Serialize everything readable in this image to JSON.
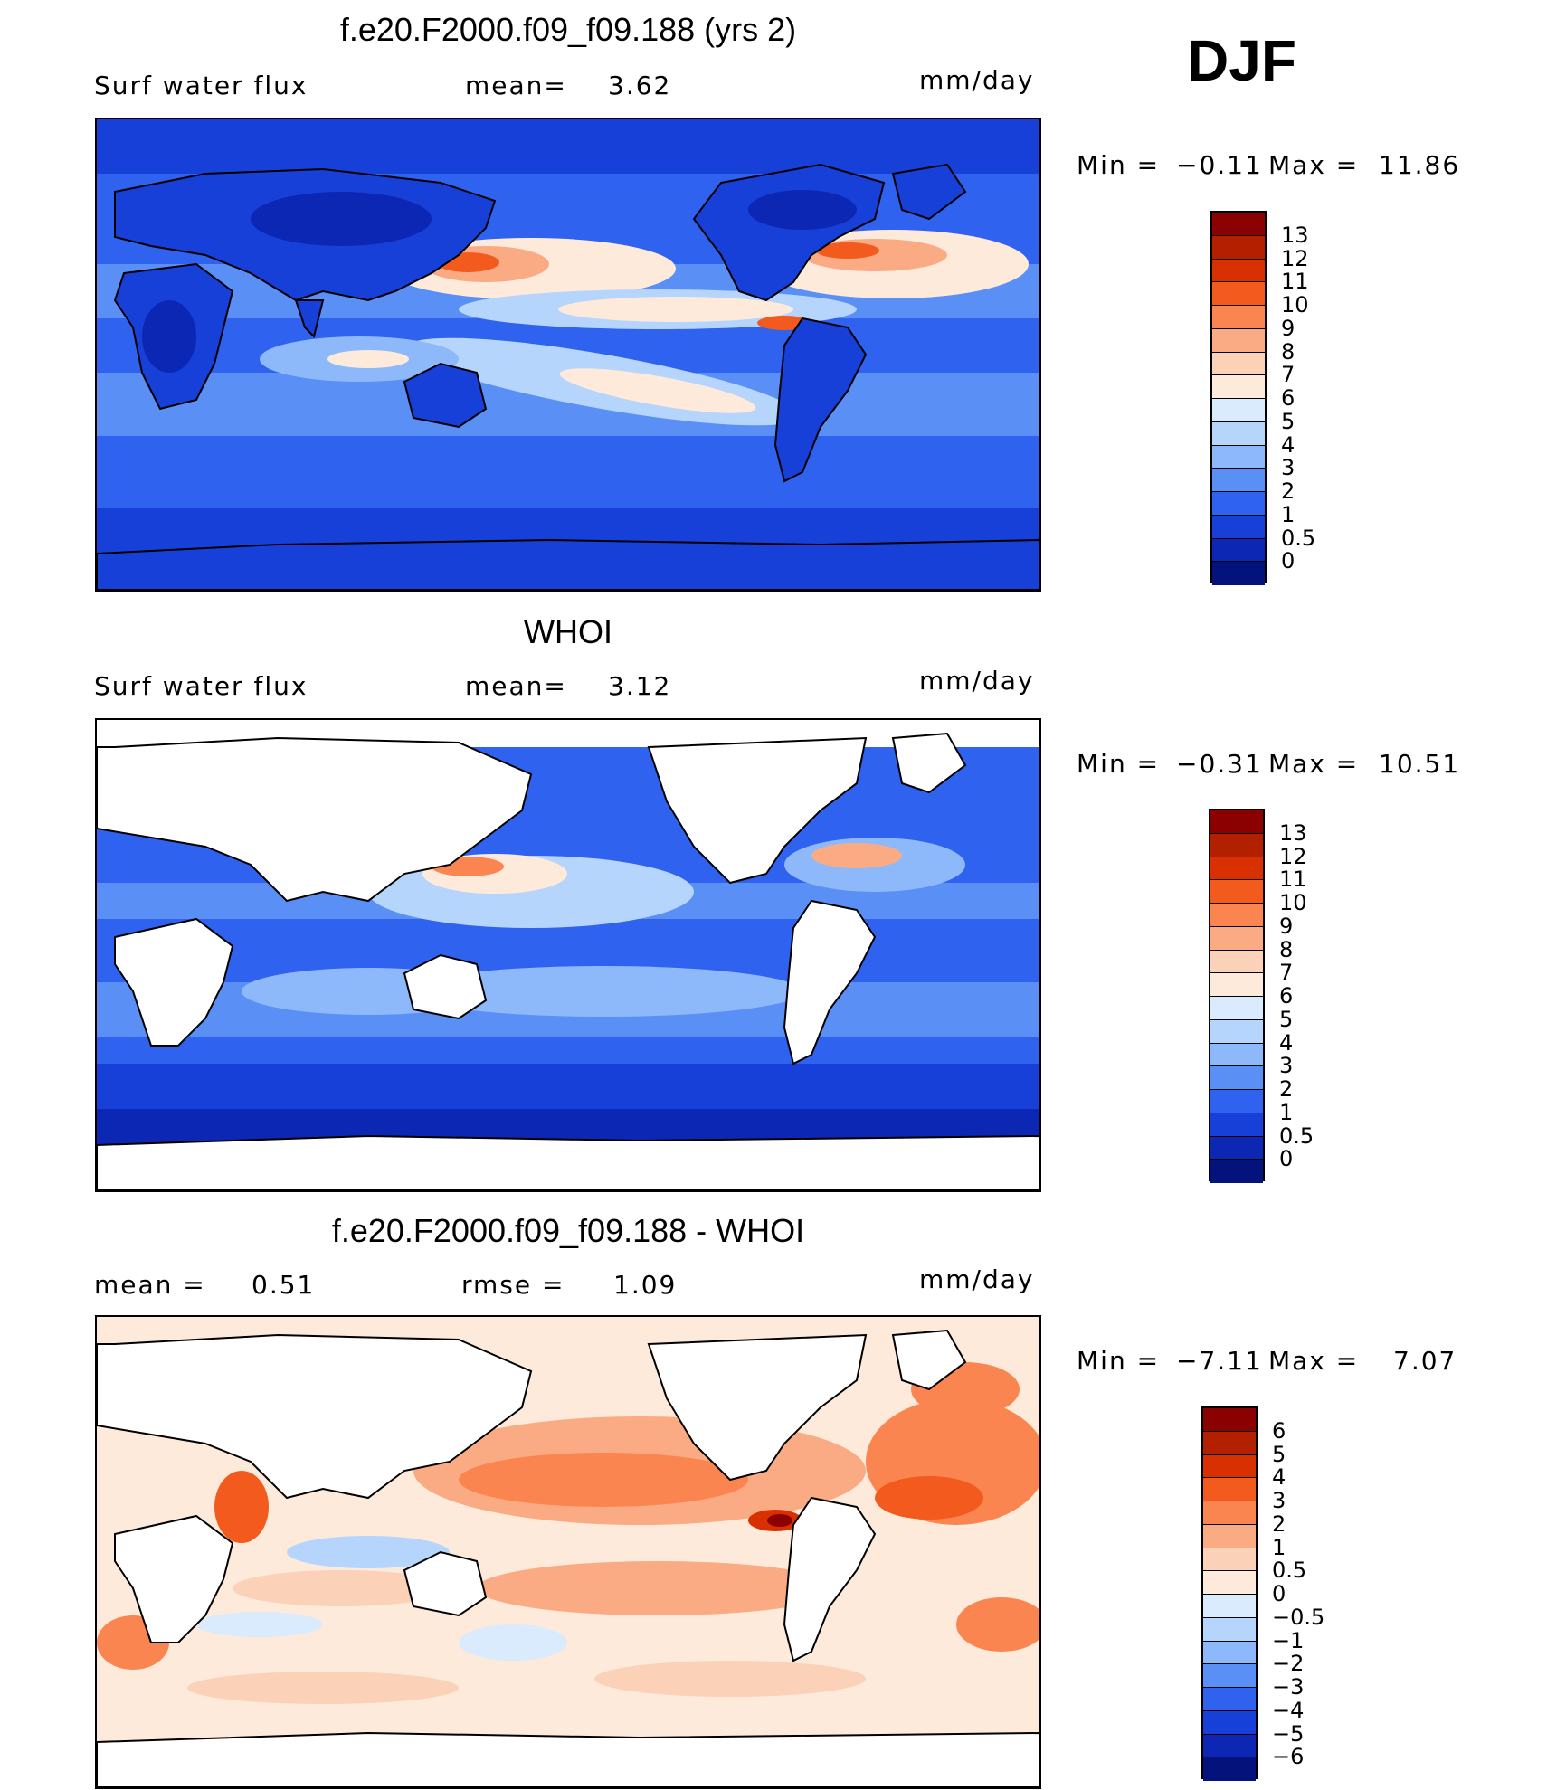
{
  "season": "DJF",
  "panels": [
    {
      "title": "f.e20.F2000.f09_f09.188 (yrs 2)",
      "left_label": "Surf water flux",
      "stat1_label": "mean=",
      "stat1_value": "3.62",
      "stat2_label": "",
      "stat2_value": "",
      "units": "mm/day",
      "min_label": "Min =",
      "min_value": "−0.11",
      "max_label": "Max =",
      "max_value": "11.86",
      "land_filled": true,
      "colorbar": {
        "levels": [
          "13",
          "12",
          "11",
          "10",
          "9",
          "8",
          "7",
          "6",
          "5",
          "4",
          "3",
          "2",
          "1",
          "0.5",
          "0"
        ],
        "colors": [
          "#8b0000",
          "#b22000",
          "#d83000",
          "#f25a1e",
          "#fb8550",
          "#fbab84",
          "#fbd1b8",
          "#fdeadb",
          "#d9ebfd",
          "#b6d5fd",
          "#8db9fb",
          "#5a90f6",
          "#2f62ee",
          "#1740d8",
          "#0c27b4",
          "#04127c"
        ]
      }
    },
    {
      "title": "WHOI",
      "left_label": "Surf water flux",
      "stat1_label": "mean=",
      "stat1_value": "3.12",
      "stat2_label": "",
      "stat2_value": "",
      "units": "mm/day",
      "min_label": "Min =",
      "min_value": "−0.31",
      "max_label": "Max =",
      "max_value": "10.51",
      "land_filled": false,
      "colorbar": {
        "levels": [
          "13",
          "12",
          "11",
          "10",
          "9",
          "8",
          "7",
          "6",
          "5",
          "4",
          "3",
          "2",
          "1",
          "0.5",
          "0"
        ],
        "colors": [
          "#8b0000",
          "#b22000",
          "#d83000",
          "#f25a1e",
          "#fb8550",
          "#fbab84",
          "#fbd1b8",
          "#fdeadb",
          "#d9ebfd",
          "#b6d5fd",
          "#8db9fb",
          "#5a90f6",
          "#2f62ee",
          "#1740d8",
          "#0c27b4",
          "#04127c"
        ]
      }
    },
    {
      "title": "f.e20.F2000.f09_f09.188 - WHOI",
      "left_label": "mean =",
      "stat1_label": "",
      "stat1_value": "0.51",
      "stat2_label": "rmse =",
      "stat2_value": "1.09",
      "units": "mm/day",
      "min_label": "Min =",
      "min_value": "−7.11",
      "max_label": "Max =",
      "max_value": "7.07",
      "land_filled": false,
      "colorbar": {
        "levels": [
          "6",
          "5",
          "4",
          "3",
          "2",
          "1",
          "0.5",
          "0",
          "−0.5",
          "−1",
          "−2",
          "−3",
          "−4",
          "−5",
          "−6"
        ],
        "colors": [
          "#8b0000",
          "#b22000",
          "#d83000",
          "#f25a1e",
          "#fb8550",
          "#fbab84",
          "#fbd1b8",
          "#fdeadb",
          "#d9ebfd",
          "#b6d5fd",
          "#8db9fb",
          "#5a90f6",
          "#2f62ee",
          "#1740d8",
          "#0c27b4",
          "#04127c"
        ]
      }
    }
  ]
}
